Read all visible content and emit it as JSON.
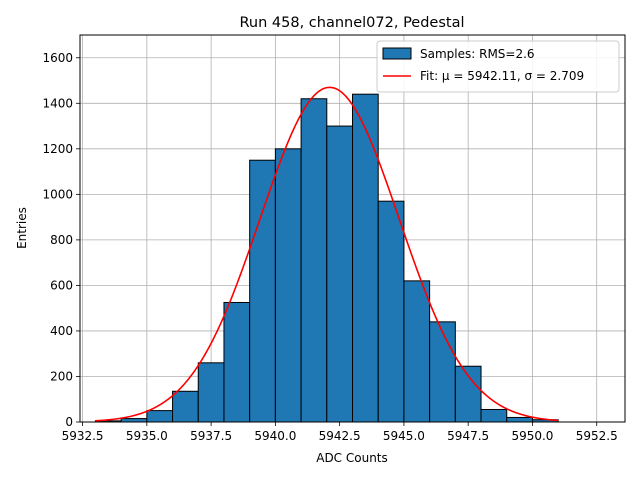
{
  "chart_data": {
    "type": "bar",
    "title": "Run 458, channel072, Pedestal",
    "xlabel": "ADC Counts",
    "ylabel": "Entries",
    "xlim": [
      5932.4,
      5953.6
    ],
    "ylim": [
      0,
      1700
    ],
    "x_ticks": [
      5932.5,
      5935.0,
      5937.5,
      5940.0,
      5942.5,
      5945.0,
      5947.5,
      5950.0,
      5952.5
    ],
    "x_tick_labels": [
      "5932.5",
      "5935.0",
      "5937.5",
      "5940.0",
      "5942.5",
      "5945.0",
      "5947.5",
      "5950.0",
      "5952.5"
    ],
    "y_ticks": [
      0,
      200,
      400,
      600,
      800,
      1000,
      1200,
      1400,
      1600
    ],
    "y_tick_labels": [
      "0",
      "200",
      "400",
      "600",
      "800",
      "1000",
      "1200",
      "1400",
      "1600"
    ],
    "grid": true,
    "legend_position": "top-right",
    "series": [
      {
        "name": "Samples: RMS=2.6",
        "kind": "histogram",
        "color": "#1f77b4",
        "edge_color": "#000000",
        "bin_edges": [
          5933,
          5934,
          5935,
          5936,
          5937,
          5938,
          5939,
          5940,
          5941,
          5942,
          5943,
          5944,
          5945,
          5946,
          5947,
          5948,
          5949,
          5950,
          5951
        ],
        "values": [
          5,
          15,
          50,
          135,
          260,
          525,
          1150,
          1200,
          1420,
          1300,
          1440,
          970,
          620,
          440,
          245,
          55,
          20,
          10
        ]
      },
      {
        "name": "Fit: μ = 5942.11, σ = 2.709",
        "kind": "gaussian",
        "color": "#ff0000",
        "mu": 5942.11,
        "sigma": 2.709,
        "amplitude": 1470,
        "x_range": [
          5933,
          5951
        ]
      }
    ]
  }
}
